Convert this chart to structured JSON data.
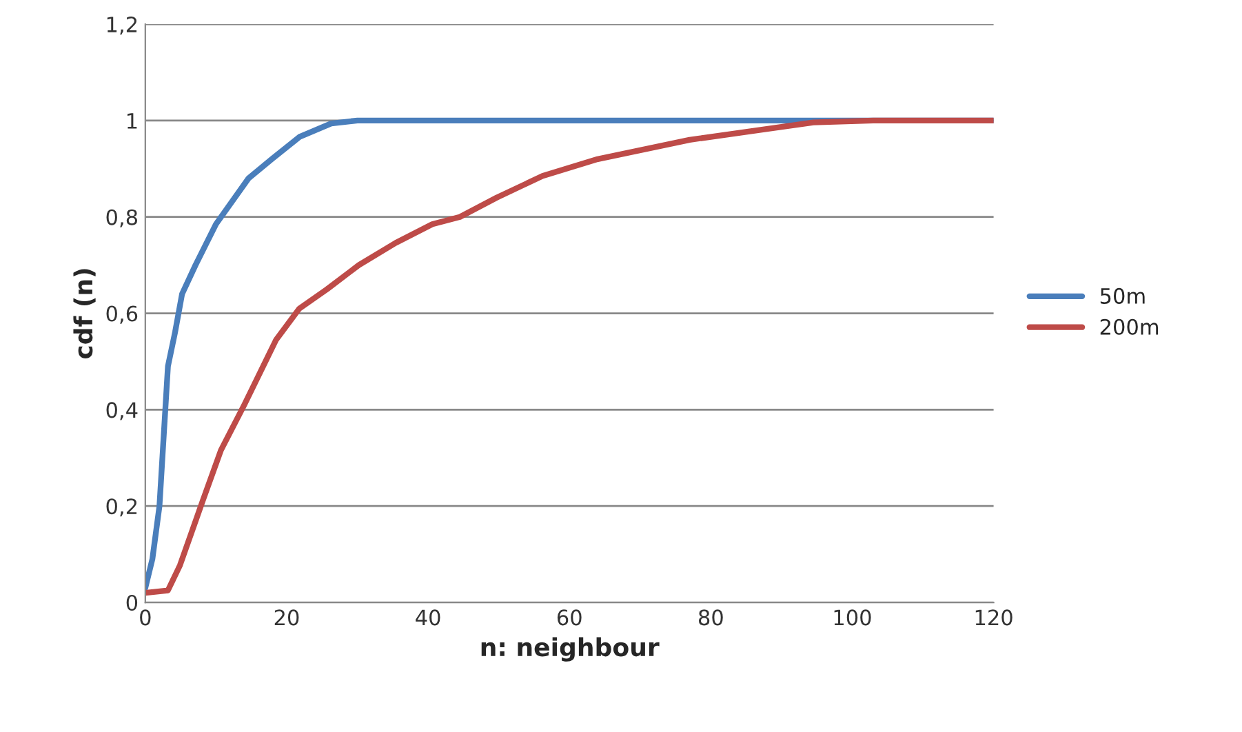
{
  "chart_data": {
    "type": "line",
    "xlabel": "n: neighbour",
    "ylabel": "cdf (n)",
    "xlim": [
      0,
      120
    ],
    "xticks": [
      0,
      20,
      40,
      60,
      80,
      100,
      120
    ],
    "ylim": [
      0,
      1.2
    ],
    "yticks": [
      {
        "value": 0,
        "label": "0"
      },
      {
        "value": 0.2,
        "label": "0,2"
      },
      {
        "value": 0.4,
        "label": "0,4"
      },
      {
        "value": 0.6,
        "label": "0,6"
      },
      {
        "value": 0.8,
        "label": "0,8"
      },
      {
        "value": 1,
        "label": "1"
      },
      {
        "value": 1.2,
        "label": "1,2"
      }
    ],
    "grid": "y",
    "legend": "right",
    "marker": "none",
    "line_style": "solid",
    "series": [
      {
        "name": "50m",
        "color": "#4a7ebb",
        "x": [
          0,
          1,
          2,
          3.2,
          4.2,
          5.2,
          7.1,
          10,
          14.6,
          17.9,
          21.8,
          26.3,
          30,
          60,
          90,
          120
        ],
        "values": [
          0.03,
          0.09,
          0.2,
          0.49,
          0.56,
          0.64,
          0.7,
          0.785,
          0.88,
          0.92,
          0.966,
          0.994,
          1,
          1,
          1,
          1
        ]
      },
      {
        "name": "200m",
        "color": "#be4b48",
        "x": [
          0,
          3.2,
          4.9,
          8.1,
          10.7,
          14,
          18.5,
          21.8,
          25.7,
          30.2,
          35.4,
          40.6,
          44.5,
          49.7,
          56.2,
          64,
          77,
          86.7,
          94.5,
          103,
          120
        ],
        "values": [
          0.02,
          0.025,
          0.077,
          0.21,
          0.316,
          0.41,
          0.545,
          0.61,
          0.65,
          0.7,
          0.746,
          0.785,
          0.8,
          0.84,
          0.885,
          0.92,
          0.96,
          0.98,
          0.996,
          1,
          1
        ]
      }
    ]
  }
}
